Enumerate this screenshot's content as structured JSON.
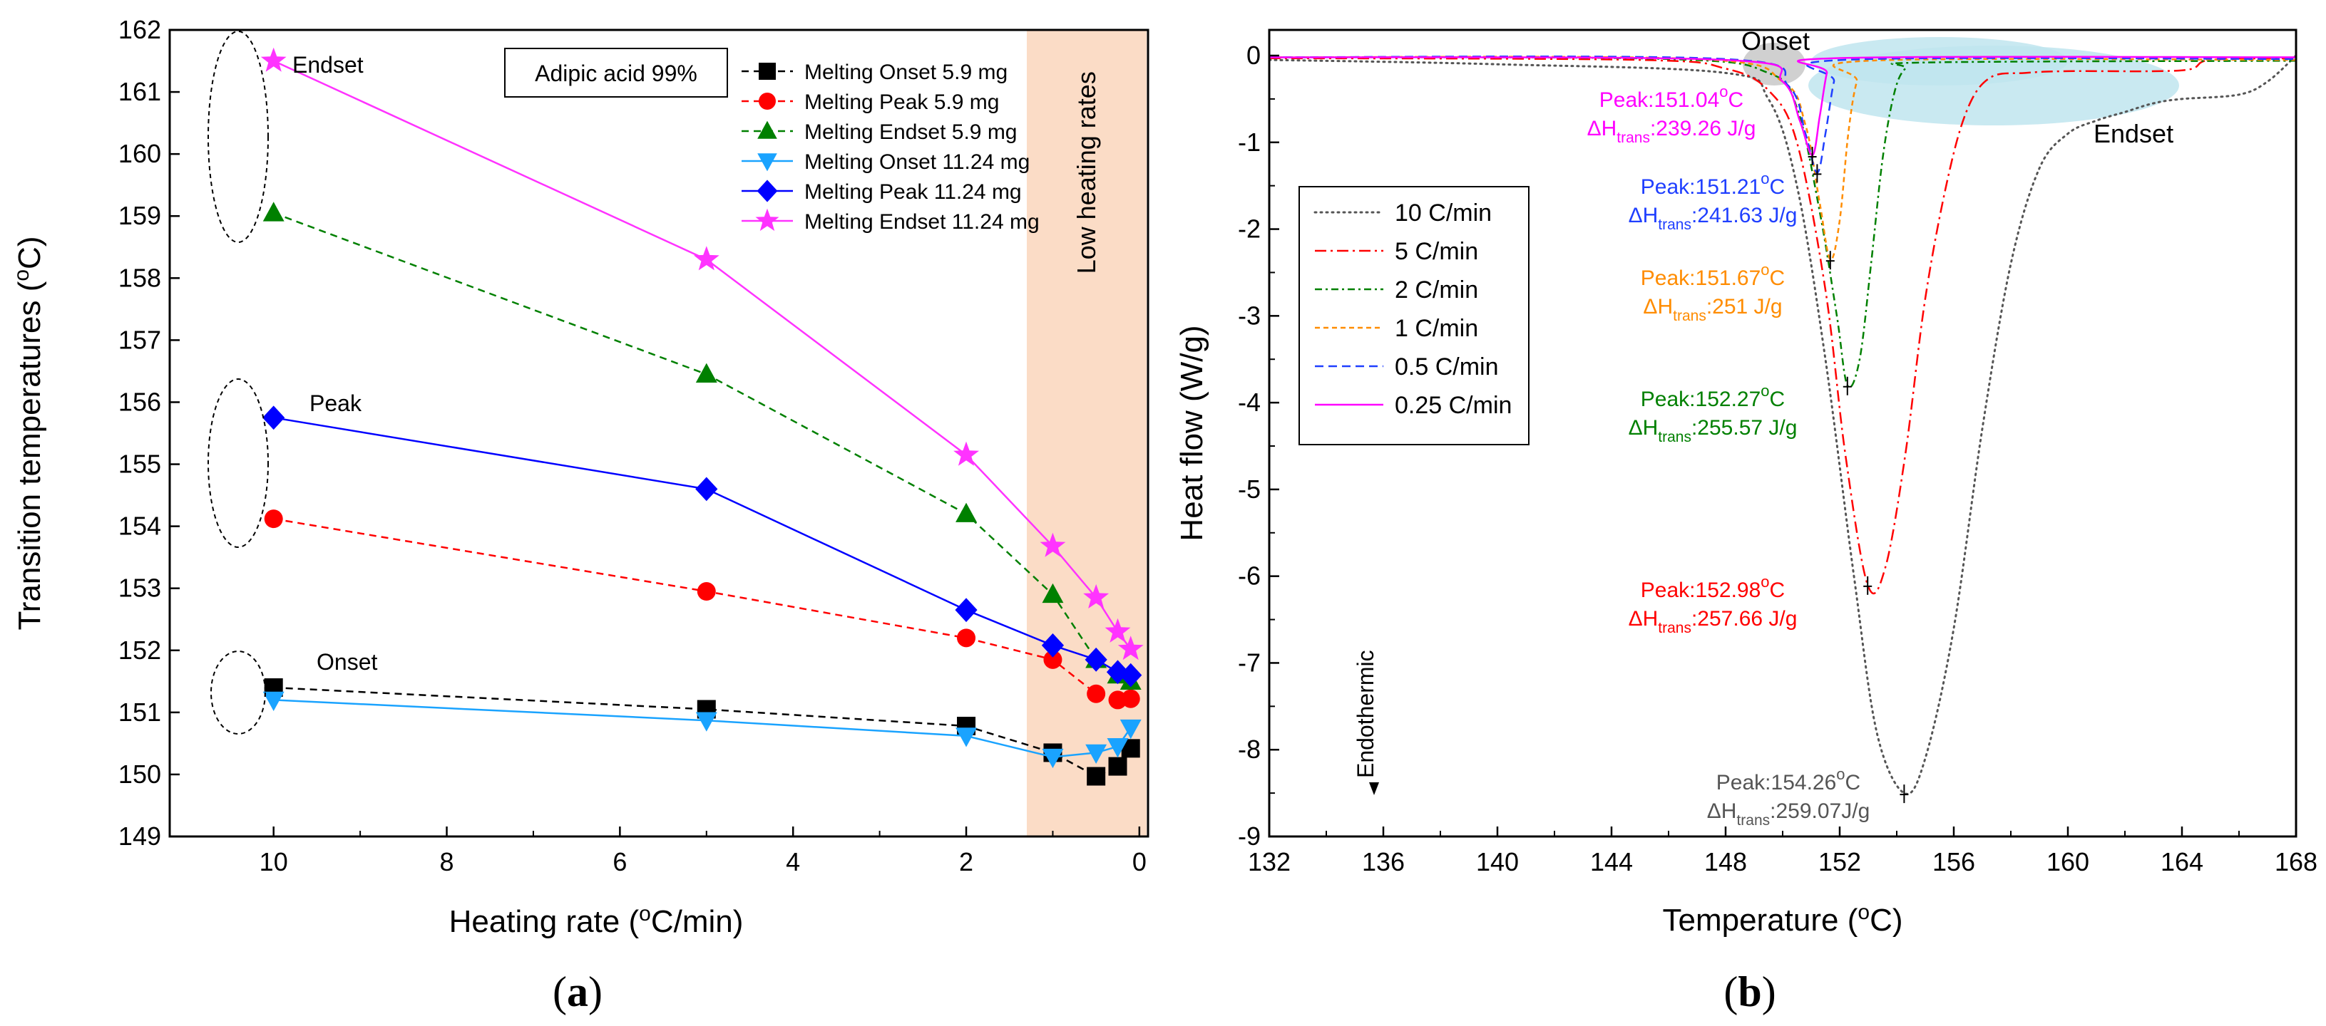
{
  "chart_data": [
    {
      "type": "line",
      "panel_label": "(a)",
      "xlabel": "Heating rate (oC/min)",
      "ylabel": "Transition temperatures (oC)",
      "xlim": [
        11.2,
        -0.1
      ],
      "ylim": [
        149,
        162
      ],
      "x_ticks": [
        "10",
        "8",
        "6",
        "4",
        "2",
        "0"
      ],
      "y_ticks": [
        "149",
        "150",
        "151",
        "152",
        "153",
        "154",
        "155",
        "156",
        "157",
        "158",
        "159",
        "160",
        "161",
        "162"
      ],
      "sample_label": "Adipic acid 99%",
      "low_rate_band": {
        "from": 1.3,
        "to": 0,
        "label": "Low heating rates"
      },
      "group_labels": {
        "endset": "Endset",
        "peak": "Peak",
        "onset": "Onset"
      },
      "series": [
        {
          "name": "Melting Onset 5.9 mg",
          "color": "#000000",
          "marker": "square",
          "dash": "dashed",
          "x": [
            10,
            5,
            2,
            1,
            0.5,
            0.25,
            0.1
          ],
          "y": [
            151.4,
            151.05,
            150.78,
            150.35,
            149.97,
            150.13,
            150.42
          ]
        },
        {
          "name": "Melting Peak 5.9 mg",
          "color": "#ff0000",
          "marker": "circle",
          "dash": "dashed",
          "x": [
            10,
            5,
            2,
            1,
            0.5,
            0.25,
            0.1
          ],
          "y": [
            154.12,
            152.95,
            152.2,
            151.85,
            151.3,
            151.2,
            151.22
          ]
        },
        {
          "name": "Melting Endset 5.9 mg",
          "color": "#008000",
          "marker": "triangle-up",
          "dash": "dashed",
          "x": [
            10,
            5,
            2,
            1,
            0.5,
            0.25,
            0.1
          ],
          "y": [
            159.05,
            156.45,
            154.2,
            152.9,
            151.85,
            151.6,
            151.5
          ]
        },
        {
          "name": "Melting Onset 11.24 mg",
          "color": "#1aa3ff",
          "marker": "triangle-down",
          "dash": "solid",
          "x": [
            10,
            5,
            2,
            1,
            0.5,
            0.25,
            0.1
          ],
          "y": [
            151.2,
            150.87,
            150.62,
            150.28,
            150.35,
            150.45,
            150.75
          ]
        },
        {
          "name": "Melting Peak 11.24 mg",
          "color": "#0000ff",
          "marker": "diamond",
          "dash": "solid",
          "x": [
            10,
            5,
            2,
            1,
            0.5,
            0.25,
            0.1
          ],
          "y": [
            155.75,
            154.6,
            152.65,
            152.08,
            151.85,
            151.65,
            151.6
          ]
        },
        {
          "name": "Melting Endset 11.24 mg",
          "color": "#ff33ff",
          "marker": "star",
          "dash": "solid",
          "x": [
            10,
            5,
            2,
            1,
            0.5,
            0.25,
            0.1
          ],
          "y": [
            161.5,
            158.3,
            155.15,
            153.68,
            152.85,
            152.3,
            152.02
          ]
        }
      ]
    },
    {
      "type": "line",
      "panel_label": "(b)",
      "xlabel": "Temperature (oC)",
      "ylabel": "Heat flow (W/g)",
      "xlim": [
        132,
        168
      ],
      "ylim": [
        -9,
        0.3
      ],
      "x_ticks": [
        "132",
        "136",
        "140",
        "144",
        "148",
        "152",
        "156",
        "160",
        "164",
        "168"
      ],
      "y_ticks": [
        "0",
        "-1",
        "-2",
        "-3",
        "-4",
        "-5",
        "-6",
        "-7",
        "-8",
        "-9"
      ],
      "annotations": {
        "onset": "Onset",
        "endset": "Endset",
        "endothermic": "Endothermic"
      },
      "series": [
        {
          "name": "10 C/min",
          "color": "#555555",
          "dash": "dotted",
          "peak_T": 154.26,
          "peak_y": -8.5,
          "enthalpy": "259.07J/g",
          "peak_label": "Peak:154.26",
          "dh_label": ":259.07J/g",
          "x": [
            132,
            140,
            148,
            149.5,
            150.5,
            151.5,
            152.5,
            153.3,
            154.26,
            155,
            156,
            157,
            158,
            159,
            160,
            161,
            162,
            163,
            164,
            166,
            167,
            168
          ],
          "y": [
            -0.05,
            -0.1,
            -0.2,
            -0.5,
            -1.5,
            -3.5,
            -6.0,
            -7.8,
            -8.5,
            -8.1,
            -6.6,
            -4.3,
            -2.4,
            -1.3,
            -0.9,
            -0.75,
            -0.65,
            -0.55,
            -0.5,
            -0.45,
            -0.3,
            0
          ]
        },
        {
          "name": "5 C/min",
          "color": "#ff0000",
          "dash": "dashdot",
          "peak_T": 152.98,
          "peak_y": -6.1,
          "enthalpy": "257.66 J/g",
          "peak_label": "Peak:152.98",
          "dh_label": ":257.66 J/g",
          "x": [
            132,
            145,
            148,
            149.5,
            150.5,
            151.5,
            152.2,
            152.98,
            153.6,
            154.3,
            155,
            155.8,
            156.5,
            157.3,
            158.5,
            160,
            164,
            165,
            168
          ],
          "y": [
            -0.03,
            -0.05,
            -0.15,
            -0.4,
            -1.0,
            -2.7,
            -4.6,
            -6.1,
            -5.9,
            -4.6,
            -2.8,
            -1.4,
            -0.6,
            -0.25,
            -0.2,
            -0.18,
            -0.17,
            -0.05,
            -0.03
          ]
        },
        {
          "name": "2 C/min",
          "color": "#008000",
          "dash": "dashdot2",
          "peak_T": 152.27,
          "peak_y": -3.8,
          "enthalpy": "255.57 J/g",
          "peak_label": "Peak:152.27",
          "dh_label": ":255.57 J/g",
          "x": [
            132,
            146,
            149.5,
            150.5,
            151.3,
            151.9,
            152.27,
            152.7,
            153.1,
            153.5,
            153.9,
            154.3,
            155,
            168
          ],
          "y": [
            -0.02,
            -0.04,
            -0.2,
            -0.6,
            -1.8,
            -3.0,
            -3.8,
            -3.5,
            -2.4,
            -1.2,
            -0.45,
            -0.15,
            -0.08,
            -0.06
          ]
        },
        {
          "name": "1 C/min",
          "color": "#ff8c00",
          "dash": "shortdash",
          "peak_T": 151.67,
          "peak_y": -2.35,
          "enthalpy": "251 J/g",
          "peak_label": "Peak:151.67",
          "dh_label": ":251 J/g",
          "x": [
            132,
            147,
            150,
            150.8,
            151.3,
            151.67,
            152,
            152.3,
            152.6,
            153,
            168
          ],
          "y": [
            -0.02,
            -0.04,
            -0.3,
            -0.8,
            -1.7,
            -2.35,
            -1.9,
            -0.9,
            -0.3,
            -0.06,
            -0.05
          ]
        },
        {
          "name": "0.5 C/min",
          "color": "#1f3fff",
          "dash": "dashed",
          "peak_T": 151.21,
          "peak_y": -1.35,
          "enthalpy": "241.63 J/g",
          "peak_label": "Peak:151.21",
          "dh_label": ":241.63 J/g",
          "x": [
            132,
            148,
            150.2,
            150.8,
            151.21,
            151.5,
            151.8,
            152.1,
            168
          ],
          "y": [
            -0.02,
            -0.04,
            -0.35,
            -0.9,
            -1.35,
            -0.9,
            -0.3,
            -0.05,
            -0.04
          ]
        },
        {
          "name": "0.25 C/min",
          "color": "#ff00ff",
          "dash": "solid",
          "peak_T": 151.04,
          "peak_y": -1.15,
          "enthalpy": "239.26 J/g",
          "peak_label": "Peak:151.04",
          "dh_label": ":239.26 J/g",
          "x": [
            132,
            148,
            150,
            150.6,
            151.04,
            151.3,
            151.55,
            151.8,
            168
          ],
          "y": [
            -0.02,
            -0.05,
            -0.3,
            -0.75,
            -1.15,
            -0.7,
            -0.2,
            -0.03,
            -0.02
          ]
        }
      ]
    }
  ],
  "text": {
    "deg": "o",
    "C": "C",
    "dh_symbol": "ΔH",
    "dh_sub": "trans"
  }
}
